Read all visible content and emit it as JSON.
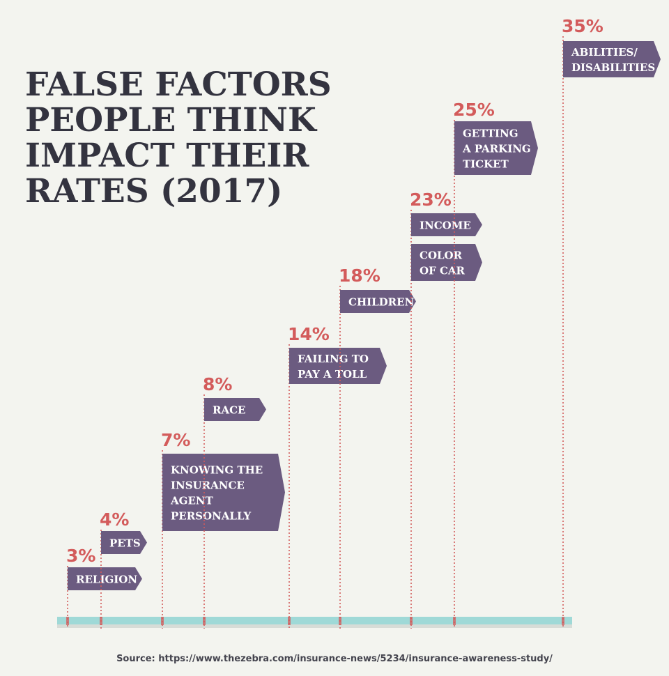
{
  "title": "FALSE FACTORS PEOPLE THINK IMPACT THEIR RATES (2017)",
  "source": "Source: https://www.thezebra.com/insurance-news/5234/insurance-awareness-study/",
  "colors": {
    "background": "#f3f4ef",
    "label_box": "#6b5b80",
    "percent": "#d35b5b",
    "axis": "#9fd9d7",
    "title": "#33333f"
  },
  "chart_data": {
    "type": "bar",
    "title": "FALSE FACTORS PEOPLE THINK IMPACT THEIR RATES (2017)",
    "unit": "%",
    "series": [
      {
        "name": "",
        "values": [
          {
            "percent": "3%",
            "value": 3,
            "labels": [
              [
                "RELIGION"
              ]
            ]
          },
          {
            "percent": "4%",
            "value": 4,
            "labels": [
              [
                "PETS"
              ]
            ]
          },
          {
            "percent": "7%",
            "value": 7,
            "labels": [
              [
                "KNOWING THE",
                "INSURANCE",
                "AGENT",
                "PERSONALLY"
              ]
            ]
          },
          {
            "percent": "8%",
            "value": 8,
            "labels": [
              [
                "RACE"
              ]
            ]
          },
          {
            "percent": "14%",
            "value": 14,
            "labels": [
              [
                "FAILING TO",
                "PAY A TOLL"
              ]
            ]
          },
          {
            "percent": "18%",
            "value": 18,
            "labels": [
              [
                "CHILDREN"
              ]
            ]
          },
          {
            "percent": "23%",
            "value": 23,
            "labels": [
              [
                "INCOME"
              ],
              [
                "COLOR",
                "OF CAR"
              ]
            ]
          },
          {
            "percent": "25%",
            "value": 25,
            "labels": [
              [
                "GETTING",
                "A PARKING",
                "TICKET"
              ]
            ]
          },
          {
            "percent": "35%",
            "value": 35,
            "labels": [
              [
                "ABILITIES/",
                "DISABILITIES"
              ]
            ]
          }
        ]
      }
    ]
  }
}
